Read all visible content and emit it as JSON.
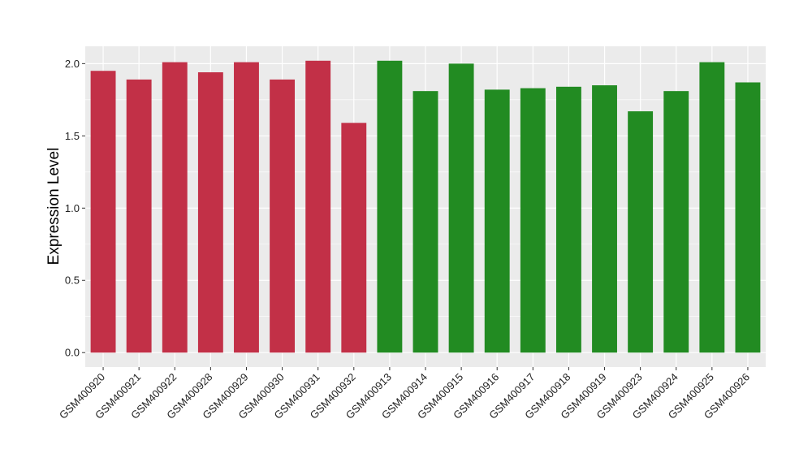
{
  "chart_data": {
    "type": "bar",
    "title": "",
    "xlabel": "",
    "ylabel": "Expression Level",
    "ylim": [
      -0.1,
      2.12
    ],
    "yticks": [
      0.0,
      0.5,
      1.0,
      1.5,
      2.0
    ],
    "ytick_labels": [
      "0.0",
      "0.5",
      "1.0",
      "1.5",
      "2.0"
    ],
    "grid": true,
    "legend": "none",
    "categories": [
      "GSM400920",
      "GSM400921",
      "GSM400922",
      "GSM400928",
      "GSM400929",
      "GSM400930",
      "GSM400931",
      "GSM400932",
      "GSM400913",
      "GSM400914",
      "GSM400915",
      "GSM400916",
      "GSM400917",
      "GSM400918",
      "GSM400919",
      "GSM400923",
      "GSM400924",
      "GSM400925",
      "GSM400926"
    ],
    "values": [
      1.95,
      1.89,
      2.01,
      1.94,
      2.01,
      1.89,
      2.02,
      1.59,
      2.02,
      1.81,
      2.0,
      1.82,
      1.83,
      1.84,
      1.85,
      1.67,
      1.81,
      2.01,
      1.87
    ],
    "bar_colors": [
      "#c23047",
      "#c23047",
      "#c23047",
      "#c23047",
      "#c23047",
      "#c23047",
      "#c23047",
      "#c23047",
      "#228b22",
      "#228b22",
      "#228b22",
      "#228b22",
      "#228b22",
      "#228b22",
      "#228b22",
      "#228b22",
      "#228b22",
      "#228b22",
      "#228b22"
    ],
    "panel_background": "#ebebeb",
    "grid_color": "#ffffff"
  }
}
